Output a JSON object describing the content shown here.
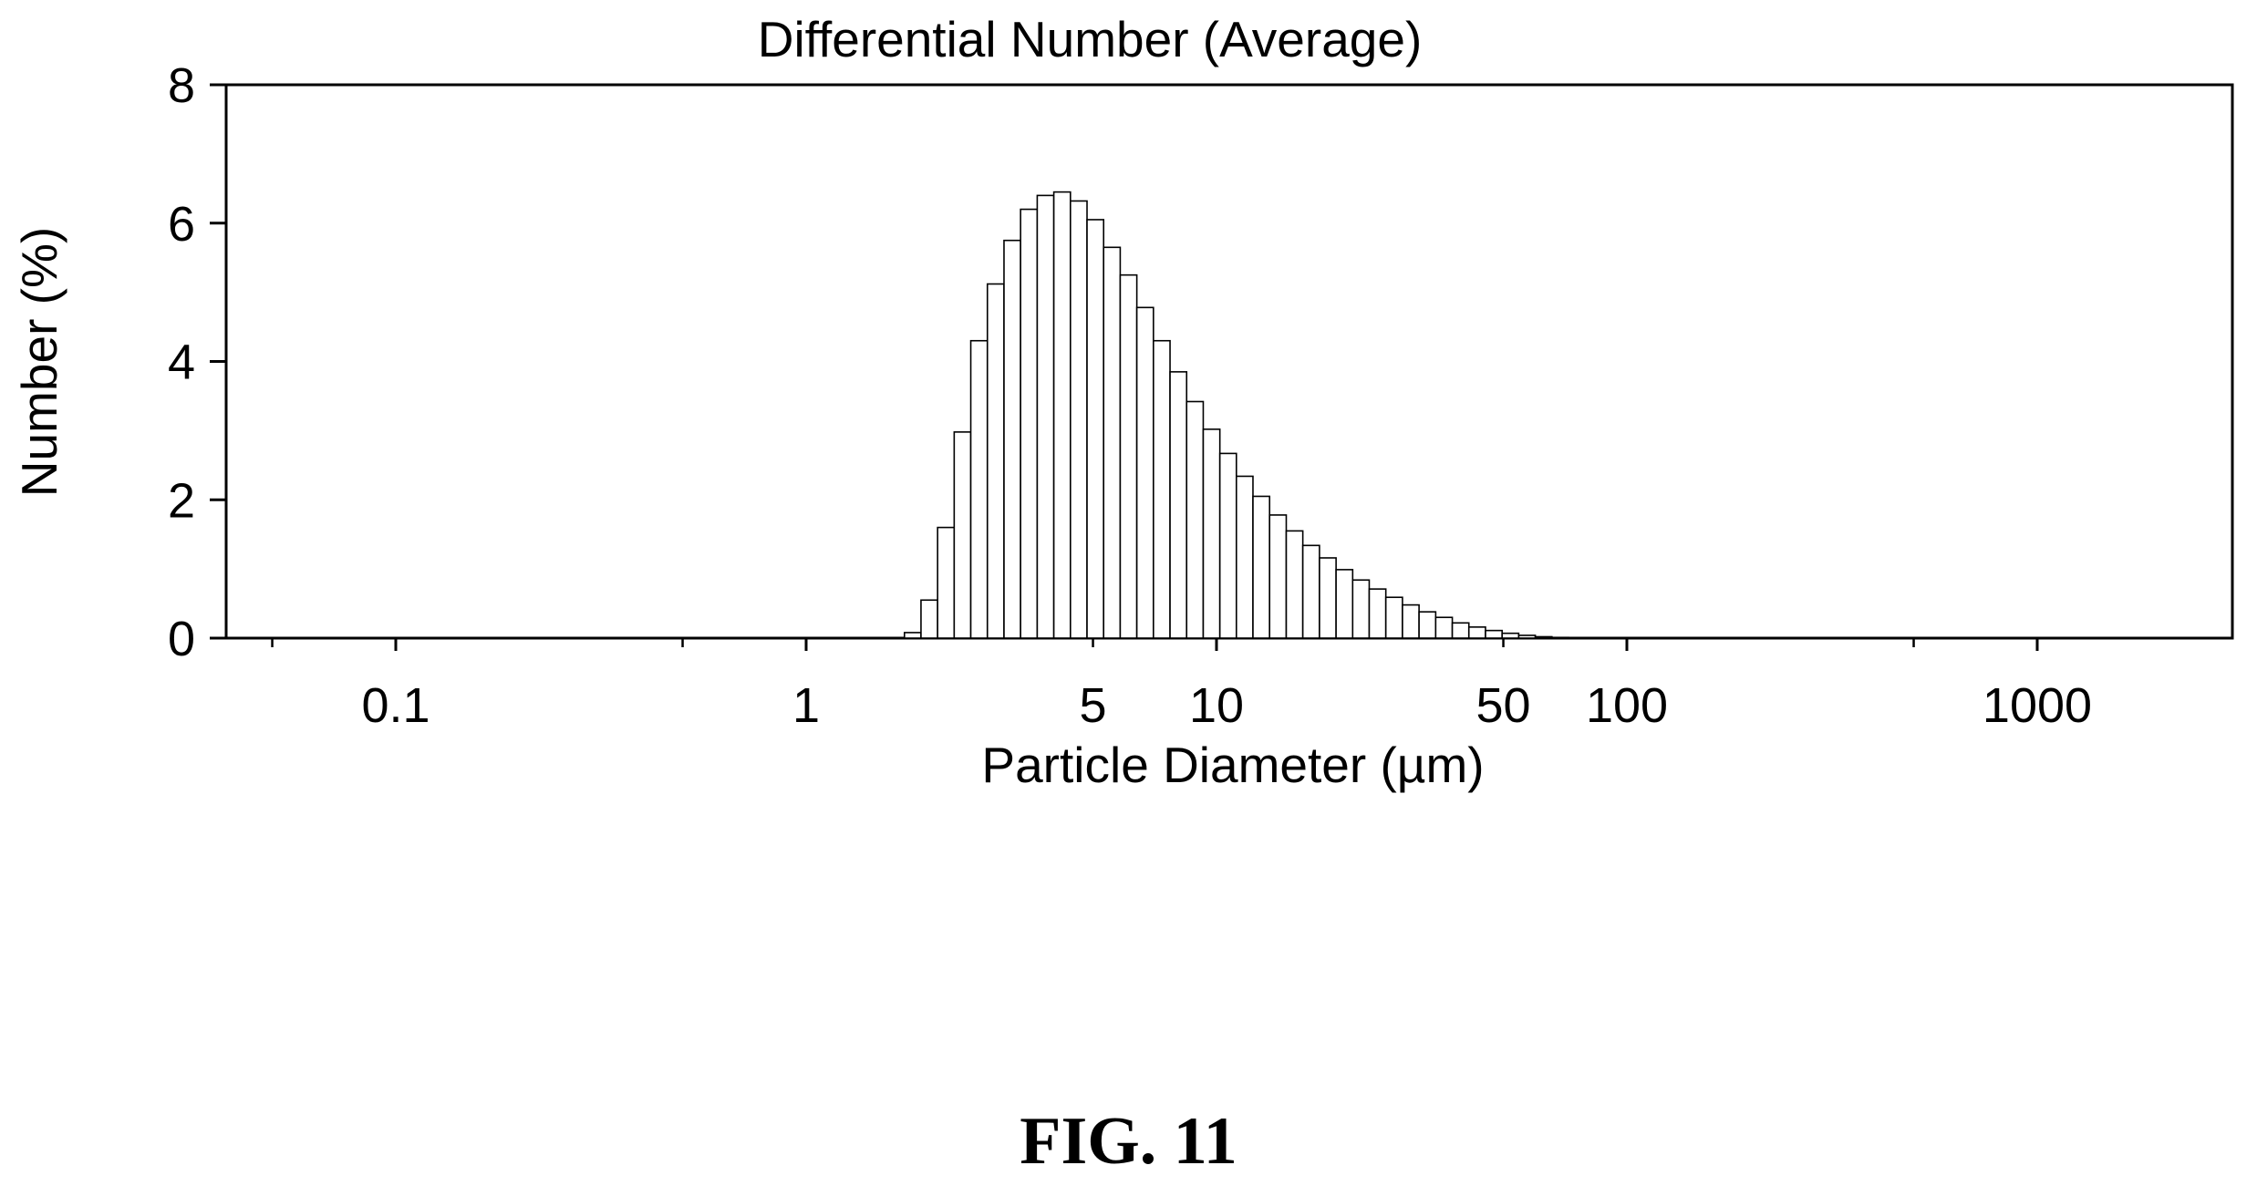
{
  "figure": {
    "caption": "FIG. 11"
  },
  "chart_data": {
    "type": "bar",
    "title": "Differential Number (Average)",
    "xlabel": "Particle Diameter (µm)",
    "ylabel": "Number (%)",
    "x_scale": "log",
    "xlim": [
      0.04,
      2000
    ],
    "ylim": [
      0,
      8
    ],
    "y_ticks": [
      "0",
      "2",
      "4",
      "6",
      "8"
    ],
    "x_tick_labels": [
      {
        "value": 0.1,
        "label": "0.1"
      },
      {
        "value": 1,
        "label": "1"
      },
      {
        "value": 5,
        "label": "5"
      },
      {
        "value": 10,
        "label": "10"
      },
      {
        "value": 50,
        "label": "50"
      },
      {
        "value": 100,
        "label": "100"
      },
      {
        "value": 1000,
        "label": "1000"
      }
    ],
    "x_minor_ticks": [
      0.05,
      0.5,
      5,
      50,
      500
    ],
    "grid": false,
    "legend": "none",
    "series": [
      {
        "bins": [
          {
            "start": 1.736,
            "end": 1.905,
            "value": 0.08
          },
          {
            "start": 1.905,
            "end": 2.091,
            "value": 0.55
          },
          {
            "start": 2.091,
            "end": 2.295,
            "value": 1.6
          },
          {
            "start": 2.295,
            "end": 2.519,
            "value": 2.98
          },
          {
            "start": 2.519,
            "end": 2.765,
            "value": 4.3
          },
          {
            "start": 2.765,
            "end": 3.035,
            "value": 5.12
          },
          {
            "start": 3.035,
            "end": 3.331,
            "value": 5.75
          },
          {
            "start": 3.331,
            "end": 3.657,
            "value": 6.2
          },
          {
            "start": 3.657,
            "end": 4.014,
            "value": 6.4
          },
          {
            "start": 4.014,
            "end": 4.406,
            "value": 6.45
          },
          {
            "start": 4.406,
            "end": 4.836,
            "value": 6.32
          },
          {
            "start": 4.836,
            "end": 5.308,
            "value": 6.05
          },
          {
            "start": 5.308,
            "end": 5.826,
            "value": 5.65
          },
          {
            "start": 5.826,
            "end": 6.395,
            "value": 5.25
          },
          {
            "start": 6.395,
            "end": 7.019,
            "value": 4.78
          },
          {
            "start": 7.019,
            "end": 7.705,
            "value": 4.3
          },
          {
            "start": 7.705,
            "end": 8.457,
            "value": 3.85
          },
          {
            "start": 8.457,
            "end": 9.283,
            "value": 3.42
          },
          {
            "start": 9.283,
            "end": 10.19,
            "value": 3.02
          },
          {
            "start": 10.19,
            "end": 11.18,
            "value": 2.67
          },
          {
            "start": 11.18,
            "end": 12.27,
            "value": 2.34
          },
          {
            "start": 12.27,
            "end": 13.47,
            "value": 2.05
          },
          {
            "start": 13.47,
            "end": 14.79,
            "value": 1.78
          },
          {
            "start": 14.79,
            "end": 16.23,
            "value": 1.55
          },
          {
            "start": 16.23,
            "end": 17.82,
            "value": 1.34
          },
          {
            "start": 17.82,
            "end": 19.56,
            "value": 1.16
          },
          {
            "start": 19.56,
            "end": 21.47,
            "value": 0.99
          },
          {
            "start": 21.47,
            "end": 23.56,
            "value": 0.84
          },
          {
            "start": 23.56,
            "end": 25.86,
            "value": 0.71
          },
          {
            "start": 25.86,
            "end": 28.39,
            "value": 0.59
          },
          {
            "start": 28.39,
            "end": 31.16,
            "value": 0.48
          },
          {
            "start": 31.16,
            "end": 34.21,
            "value": 0.38
          },
          {
            "start": 34.21,
            "end": 37.55,
            "value": 0.3
          },
          {
            "start": 37.55,
            "end": 41.21,
            "value": 0.22
          },
          {
            "start": 41.21,
            "end": 45.24,
            "value": 0.16
          },
          {
            "start": 45.24,
            "end": 49.66,
            "value": 0.11
          },
          {
            "start": 49.66,
            "end": 54.51,
            "value": 0.07
          },
          {
            "start": 54.51,
            "end": 59.83,
            "value": 0.04
          },
          {
            "start": 59.83,
            "end": 65.67,
            "value": 0.02
          },
          {
            "start": 65.67,
            "end": 72.08,
            "value": 0.01
          }
        ]
      }
    ],
    "colors": {
      "bar_fill": "#ffffff",
      "bar_stroke": "#000000",
      "axis": "#000000"
    }
  }
}
